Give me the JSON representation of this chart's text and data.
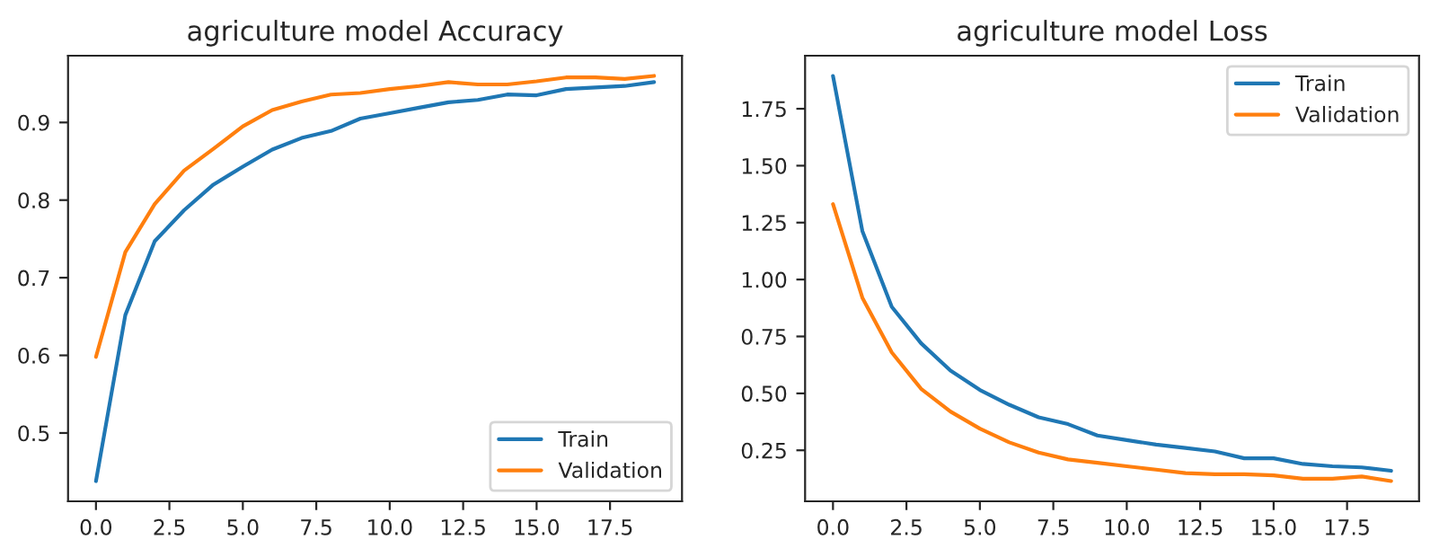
{
  "chart_data": [
    {
      "type": "line",
      "title": "agriculture model Accuracy",
      "x": [
        0,
        1,
        2,
        3,
        4,
        5,
        6,
        7,
        8,
        9,
        10,
        11,
        12,
        13,
        14,
        15,
        16,
        17,
        18,
        19
      ],
      "series": [
        {
          "name": "Train",
          "color": "#1f77b4",
          "values": [
            0.438,
            0.652,
            0.747,
            0.787,
            0.82,
            0.843,
            0.865,
            0.88,
            0.889,
            0.905,
            0.912,
            0.919,
            0.926,
            0.929,
            0.936,
            0.935,
            0.943,
            0.945,
            0.947,
            0.952
          ]
        },
        {
          "name": "Validation",
          "color": "#ff7f0e",
          "values": [
            0.598,
            0.733,
            0.795,
            0.838,
            0.866,
            0.895,
            0.916,
            0.927,
            0.936,
            0.938,
            0.943,
            0.947,
            0.952,
            0.949,
            0.949,
            0.953,
            0.958,
            0.958,
            0.956,
            0.96
          ]
        }
      ],
      "xlim": [
        -0.95,
        19.95
      ],
      "xticks": [
        {
          "value": 0,
          "label": "0.0"
        },
        2.5,
        {
          "value": 5,
          "label": "5.0"
        },
        7.5,
        {
          "value": 10,
          "label": "10.0"
        },
        12.5,
        {
          "value": 15,
          "label": "15.0"
        },
        17.5
      ],
      "ylim": [
        0.412,
        0.986
      ],
      "yticks": [
        0.5,
        0.6,
        0.7,
        0.8,
        0.9
      ],
      "legend": "bottom right",
      "grid": false
    },
    {
      "type": "line",
      "title": "agriculture model Loss",
      "x": [
        0,
        1,
        2,
        3,
        4,
        5,
        6,
        7,
        8,
        9,
        10,
        11,
        12,
        13,
        14,
        15,
        16,
        17,
        18,
        19
      ],
      "series": [
        {
          "name": "Train",
          "color": "#1f77b4",
          "values": [
            1.894,
            1.213,
            0.88,
            0.72,
            0.6,
            0.515,
            0.45,
            0.395,
            0.365,
            0.315,
            0.295,
            0.275,
            0.26,
            0.245,
            0.215,
            0.215,
            0.19,
            0.18,
            0.175,
            0.16
          ]
        },
        {
          "name": "Validation",
          "color": "#ff7f0e",
          "values": [
            1.331,
            0.92,
            0.68,
            0.52,
            0.42,
            0.345,
            0.285,
            0.24,
            0.21,
            0.195,
            0.18,
            0.165,
            0.15,
            0.145,
            0.145,
            0.14,
            0.125,
            0.125,
            0.135,
            0.115
          ]
        }
      ],
      "xlim": [
        -0.95,
        19.95
      ],
      "xticks": [
        {
          "value": 0,
          "label": "0.0"
        },
        2.5,
        {
          "value": 5,
          "label": "5.0"
        },
        7.5,
        {
          "value": 10,
          "label": "10.0"
        },
        12.5,
        {
          "value": 15,
          "label": "15.0"
        },
        17.5
      ],
      "ylim": [
        0.026,
        1.983
      ],
      "yticks": [
        0.25,
        {
          "value": 0.5,
          "label": "0.50"
        },
        0.75,
        {
          "value": 1.0,
          "label": "1.00"
        },
        1.25,
        {
          "value": 1.5,
          "label": "1.50"
        },
        1.75
      ],
      "legend": "top right",
      "grid": false
    }
  ]
}
